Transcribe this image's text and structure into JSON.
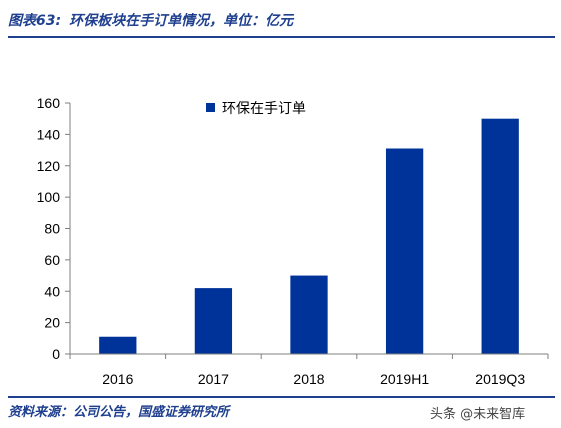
{
  "header": {
    "figure_label": "图表63:",
    "title": "环保板块在手订单情况，单位：亿元"
  },
  "footer": {
    "source": "资料来源：公司公告，国盛证券研究所",
    "watermark": "头条 @未来智库"
  },
  "colors": {
    "accent": "#1f3f8f",
    "bar": "#003399"
  },
  "chart_data": {
    "type": "bar",
    "categories": [
      "2016",
      "2017",
      "2018",
      "2019H1",
      "2019Q3"
    ],
    "series": [
      {
        "name": "环保在手订单",
        "values": [
          11,
          42,
          50,
          131,
          150
        ]
      }
    ],
    "ylim": [
      0,
      160
    ],
    "yticks": [
      0,
      20,
      40,
      60,
      80,
      100,
      120,
      140,
      160
    ],
    "title": "",
    "xlabel": "",
    "ylabel": "",
    "grid": false,
    "legend": "top-center"
  }
}
